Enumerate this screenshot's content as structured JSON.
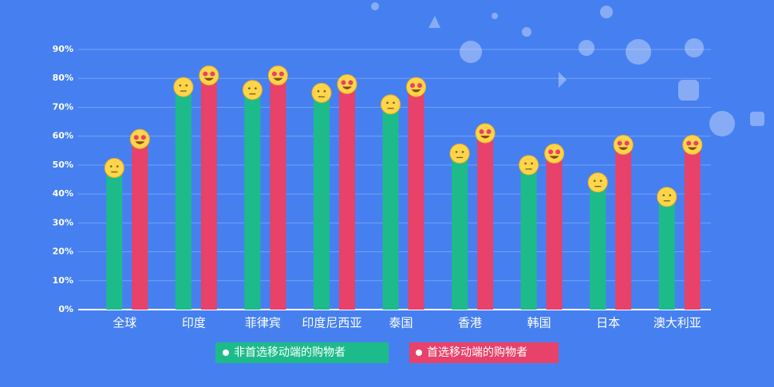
{
  "chart_data": {
    "type": "bar",
    "categories": [
      "全球",
      "印度",
      "菲律宾",
      "印度尼西亚",
      "泰国",
      "香港",
      "韩国",
      "日本",
      "澳大利亚"
    ],
    "series": [
      {
        "name": "非首选移动端的购物者",
        "color": "#1dbb8a",
        "values": [
          49,
          77,
          76,
          75,
          71,
          54,
          50,
          44,
          39
        ]
      },
      {
        "name": "首选移动端的购物者",
        "color": "#e8416a",
        "values": [
          59,
          81,
          81,
          78,
          77,
          61,
          54,
          57,
          57
        ]
      }
    ],
    "ylim": [
      0,
      90
    ],
    "yticks": [
      {
        "value": 0,
        "label": "0%"
      },
      {
        "value": 10,
        "label": "10%"
      },
      {
        "value": 20,
        "label": "20%"
      },
      {
        "value": 30,
        "label": "30%"
      },
      {
        "value": 40,
        "label": "40%"
      },
      {
        "value": 50,
        "label": "50%"
      },
      {
        "value": 60,
        "label": "60%"
      },
      {
        "value": 70,
        "label": "70%"
      },
      {
        "value": 80,
        "label": "80%"
      },
      {
        "value": 90,
        "label": "90%"
      }
    ],
    "grid": true
  }
}
